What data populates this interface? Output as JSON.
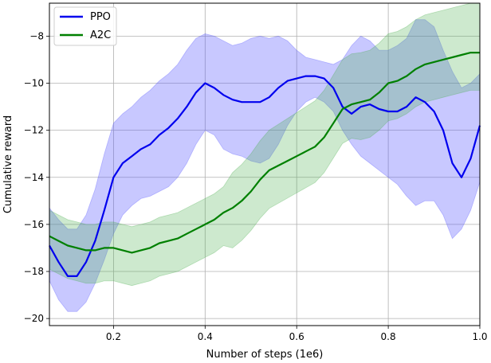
{
  "chart_data": {
    "type": "line",
    "title": "",
    "xlabel": "Number of steps (1e6)",
    "ylabel": "Cumulative reward",
    "xlim": [
      0.06,
      1.0
    ],
    "ylim": [
      -20.3,
      -6.6
    ],
    "xticks": [
      0.2,
      0.4,
      0.6,
      0.8,
      1.0
    ],
    "xtick_labels": [
      "0.2",
      "0.4",
      "0.6",
      "0.8",
      "1.0"
    ],
    "yticks": [
      -20,
      -18,
      -16,
      -14,
      -12,
      -10,
      -8
    ],
    "ytick_labels": [
      "−20",
      "−18",
      "−16",
      "−14",
      "−12",
      "−10",
      "−8"
    ],
    "grid": true,
    "legend_position": "upper-left",
    "series": [
      {
        "name": "PPO",
        "color": "#0000ee",
        "band_color": "#5555ff",
        "x": [
          0.06,
          0.08,
          0.1,
          0.12,
          0.14,
          0.16,
          0.18,
          0.2,
          0.22,
          0.24,
          0.26,
          0.28,
          0.3,
          0.32,
          0.34,
          0.36,
          0.38,
          0.4,
          0.42,
          0.44,
          0.46,
          0.48,
          0.5,
          0.52,
          0.54,
          0.56,
          0.58,
          0.6,
          0.62,
          0.64,
          0.66,
          0.68,
          0.7,
          0.72,
          0.74,
          0.76,
          0.78,
          0.8,
          0.82,
          0.84,
          0.86,
          0.88,
          0.9,
          0.92,
          0.94,
          0.96,
          0.98,
          1.0
        ],
        "mean": [
          -16.9,
          -17.6,
          -18.2,
          -18.2,
          -17.6,
          -16.7,
          -15.4,
          -14.0,
          -13.4,
          -13.1,
          -12.8,
          -12.6,
          -12.2,
          -11.9,
          -11.5,
          -11.0,
          -10.4,
          -10.0,
          -10.2,
          -10.5,
          -10.7,
          -10.8,
          -10.8,
          -10.8,
          -10.6,
          -10.2,
          -9.9,
          -9.8,
          -9.7,
          -9.7,
          -9.8,
          -10.2,
          -11.0,
          -11.3,
          -11.0,
          -10.9,
          -11.1,
          -11.2,
          -11.2,
          -11.0,
          -10.6,
          -10.8,
          -11.2,
          -12.0,
          -13.4,
          -14.0,
          -13.2,
          -11.8
        ],
        "upper": [
          -15.3,
          -15.8,
          -16.2,
          -16.2,
          -15.6,
          -14.5,
          -13.0,
          -11.7,
          -11.3,
          -11.0,
          -10.6,
          -10.3,
          -9.9,
          -9.6,
          -9.2,
          -8.6,
          -8.1,
          -7.9,
          -8.0,
          -8.2,
          -8.4,
          -8.3,
          -8.1,
          -8.0,
          -8.1,
          -8.0,
          -8.2,
          -8.6,
          -8.9,
          -9.0,
          -9.1,
          -9.2,
          -9.0,
          -8.4,
          -8.0,
          -8.2,
          -8.6,
          -8.6,
          -8.4,
          -8.1,
          -7.3,
          -7.3,
          -7.6,
          -8.6,
          -9.5,
          -10.2,
          -10.0,
          -9.6
        ],
        "lower": [
          -18.4,
          -19.2,
          -19.7,
          -19.7,
          -19.3,
          -18.5,
          -17.5,
          -16.4,
          -15.6,
          -15.2,
          -14.9,
          -14.8,
          -14.6,
          -14.4,
          -14.0,
          -13.4,
          -12.6,
          -12.0,
          -12.2,
          -12.8,
          -13.0,
          -13.1,
          -13.3,
          -13.4,
          -13.2,
          -12.6,
          -11.8,
          -11.2,
          -10.8,
          -10.6,
          -10.8,
          -11.2,
          -12.0,
          -12.6,
          -13.1,
          -13.4,
          -13.7,
          -14.0,
          -14.3,
          -14.8,
          -15.2,
          -15.0,
          -15.0,
          -15.6,
          -16.6,
          -16.2,
          -15.4,
          -14.2
        ]
      },
      {
        "name": "A2C",
        "color": "#008000",
        "band_color": "#4caf50",
        "x": [
          0.06,
          0.08,
          0.1,
          0.12,
          0.14,
          0.16,
          0.18,
          0.2,
          0.22,
          0.24,
          0.26,
          0.28,
          0.3,
          0.32,
          0.34,
          0.36,
          0.38,
          0.4,
          0.42,
          0.44,
          0.46,
          0.48,
          0.5,
          0.52,
          0.54,
          0.56,
          0.58,
          0.6,
          0.62,
          0.64,
          0.66,
          0.68,
          0.7,
          0.72,
          0.74,
          0.76,
          0.78,
          0.8,
          0.82,
          0.84,
          0.86,
          0.88,
          0.9,
          0.92,
          0.94,
          0.96,
          0.98,
          1.0
        ],
        "mean": [
          -16.5,
          -16.7,
          -16.9,
          -17.0,
          -17.1,
          -17.1,
          -17.0,
          -17.0,
          -17.1,
          -17.2,
          -17.1,
          -17.0,
          -16.8,
          -16.7,
          -16.6,
          -16.4,
          -16.2,
          -16.0,
          -15.8,
          -15.5,
          -15.3,
          -15.0,
          -14.6,
          -14.1,
          -13.7,
          -13.5,
          -13.3,
          -13.1,
          -12.9,
          -12.7,
          -12.3,
          -11.7,
          -11.1,
          -10.9,
          -10.8,
          -10.7,
          -10.4,
          -10.0,
          -9.9,
          -9.7,
          -9.4,
          -9.2,
          -9.1,
          -9.0,
          -8.9,
          -8.8,
          -8.7,
          -8.7
        ]
      }
    ]
  }
}
